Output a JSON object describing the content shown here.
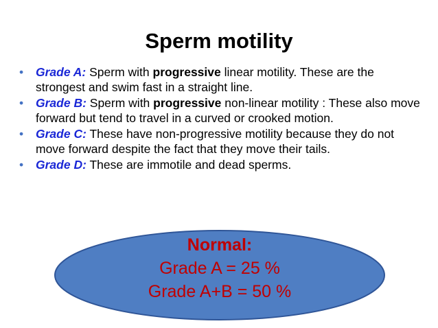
{
  "slide": {
    "title": "Sperm motility",
    "bullets": [
      {
        "grade": "Grade A:",
        "text_before": " Sperm with ",
        "emphasis": "progressive",
        "text_after": " linear motility. These are the strongest and swim fast in a straight line."
      },
      {
        "grade": "Grade B:",
        "text_before": " Sperm with ",
        "emphasis": "progressive",
        "text_after": " non-linear motility : These also move forward but tend to travel in a curved or crooked motion."
      },
      {
        "grade": "Grade C:",
        "text_before": " These have non-progressive motility because they do not move forward despite the fact that they move their tails.",
        "emphasis": "",
        "text_after": ""
      },
      {
        "grade": "Grade D:",
        "text_before": " These are immotile and dead sperms.",
        "emphasis": "",
        "text_after": ""
      }
    ],
    "callout": {
      "label": "Normal:",
      "line1": "Grade A = 25 %",
      "line2": "Grade A+B = 50 %"
    }
  },
  "colors": {
    "bullet_marker": "#4472c4",
    "grade_label": "#1a27d6",
    "ellipse_fill": "#4f7ec3",
    "ellipse_stroke": "#2f5597",
    "callout_text": "#c00000"
  },
  "icons": {
    "bullet_marker": "bullet-dot-icon"
  }
}
